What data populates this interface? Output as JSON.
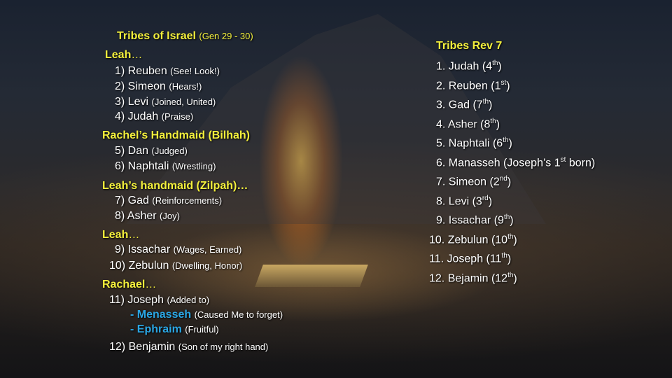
{
  "left": {
    "title": "Tribes of Israel",
    "title_ref": "(Gen 29 - 30)",
    "groups": [
      {
        "header": "Leah",
        "suffix": "…"
      },
      {
        "header": "Rachel’s Handmaid (Bilhah)",
        "suffix": ""
      },
      {
        "header": "Leah’s handmaid (Zilpah)…",
        "suffix": ""
      },
      {
        "header": "Leah",
        "suffix": "…"
      },
      {
        "header": "Rachael",
        "suffix": "…"
      }
    ],
    "items": [
      {
        "name": "1) Reuben",
        "meaning": "(See! Look!)"
      },
      {
        "name": "2) Simeon",
        "meaning": "(Hears!)"
      },
      {
        "name": "3) Levi",
        "meaning": "(Joined, United)"
      },
      {
        "name": "4) Judah",
        "meaning": "(Praise)"
      },
      {
        "name": "5) Dan",
        "meaning": "(Judged)"
      },
      {
        "name": "6) Naphtali",
        "meaning": "(Wrestling)"
      },
      {
        "name": "7) Gad",
        "meaning": "(Reinforcements)"
      },
      {
        "name": "8) Asher",
        "meaning": "(Joy)"
      },
      {
        "name": "9) Issachar",
        "meaning": "(Wages, Earned)"
      },
      {
        "name": "10) Zebulun",
        "meaning": "(Dwelling, Honor)"
      },
      {
        "name": "11) Joseph",
        "meaning": "(Added to)"
      },
      {
        "name": "12) Benjamin",
        "meaning": "(Son of my right hand)"
      }
    ],
    "sons": [
      {
        "name": "- Menasseh",
        "meaning": "(Caused Me to forget)"
      },
      {
        "name": "- Ephraim",
        "meaning": "(Fruitful)"
      }
    ]
  },
  "right": {
    "title": "Tribes Rev 7",
    "items": [
      {
        "text": "1. Judah (4",
        "sup": "th",
        "end": ")"
      },
      {
        "text": "2. Reuben (1",
        "sup": "st",
        "end": ")"
      },
      {
        "text": "3. Gad (7",
        "sup": "th",
        "end": ")"
      },
      {
        "text": "4. Asher (8",
        "sup": "th",
        "end": ")"
      },
      {
        "text": "5. Naphtali (6",
        "sup": "th",
        "end": ")"
      },
      {
        "text": "6. Manasseh (Joseph’s 1",
        "sup": "st",
        "end": " born)"
      },
      {
        "text": "7. Simeon (2",
        "sup": "nd",
        "end": ")"
      },
      {
        "text": "8. Levi (3",
        "sup": "rd",
        "end": ")"
      },
      {
        "text": "9. Issachar (9",
        "sup": "th",
        "end": ")"
      },
      {
        "text": "10. Zebulun (10",
        "sup": "th",
        "end": ")"
      },
      {
        "text": "11. Joseph (11",
        "sup": "th",
        "end": ")"
      },
      {
        "text": "12. Bejamin (12",
        "sup": "th",
        "end": ")"
      }
    ]
  },
  "colors": {
    "header": "#f4f03c",
    "son": "#2aa6e4",
    "text": "#ffffff"
  }
}
